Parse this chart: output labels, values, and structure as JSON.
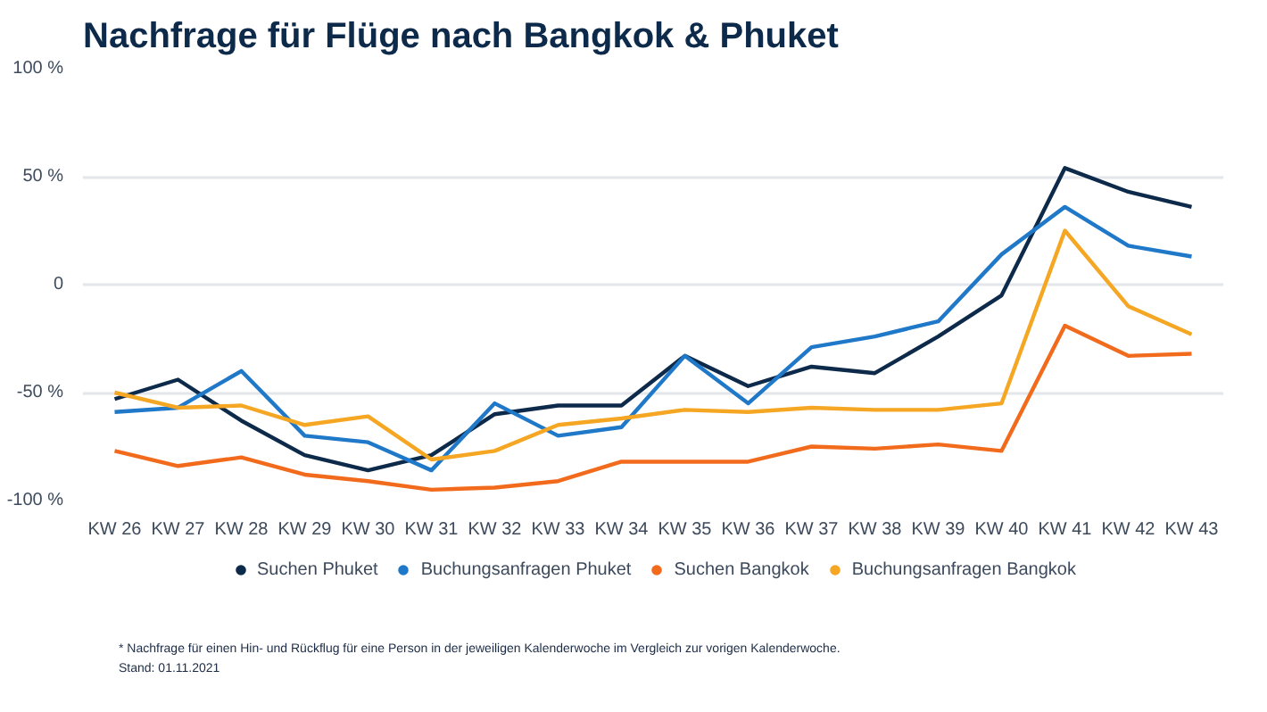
{
  "chart_data": {
    "type": "line",
    "title": "Nachfrage für Flüge nach Bangkok & Phuket",
    "categories": [
      "KW 26",
      "KW 27",
      "KW 28",
      "KW 29",
      "KW 30",
      "KW 31",
      "KW 32",
      "KW 33",
      "KW 34",
      "KW 35",
      "KW 36",
      "KW 37",
      "KW 38",
      "KW 39",
      "KW 40",
      "KW 41",
      "KW 42",
      "KW 43"
    ],
    "series": [
      {
        "name": "Suchen Phuket",
        "color": "#0d2a4a",
        "values": [
          -53,
          -44,
          -63,
          -79,
          -86,
          -79,
          -60,
          -56,
          -56,
          -33,
          -47,
          -38,
          -41,
          -24,
          -5,
          54,
          43,
          36
        ]
      },
      {
        "name": "Buchungsanfragen Phuket",
        "color": "#1f78c8",
        "values": [
          -59,
          -57,
          -40,
          -70,
          -73,
          -86,
          -55,
          -70,
          -66,
          -33,
          -55,
          -29,
          -24,
          -17,
          14,
          36,
          18,
          13
        ]
      },
      {
        "name": "Suchen Bangkok",
        "color": "#f26b1d",
        "values": [
          -77,
          -84,
          -80,
          -88,
          -91,
          -95,
          -94,
          -91,
          -82,
          -82,
          -82,
          -75,
          -76,
          -74,
          -77,
          -19,
          -33,
          -32
        ]
      },
      {
        "name": "Buchungsanfragen Bangkok",
        "color": "#f5a623",
        "values": [
          -50,
          -57,
          -56,
          -65,
          -61,
          -81,
          -77,
          -65,
          -62,
          -58,
          -59,
          -57,
          -58,
          -58,
          -55,
          25,
          -10,
          -23
        ]
      }
    ],
    "ylim": [
      -100,
      100
    ],
    "yticks": [
      {
        "value": -100,
        "label": "-100 %"
      },
      {
        "value": -50,
        "label": "-50 %"
      },
      0,
      {
        "value": 50,
        "label": "50 %"
      },
      {
        "value": 100,
        "label": "100 %"
      }
    ],
    "grid": "y",
    "legend": "bottom",
    "marker": "none",
    "line_style": "solid",
    "annotations": [
      "* Nachfrage für einen Hin- und Rückflug für eine Person in der jeweiligen Kalenderwoche im Vergleich zur vorigen Kalenderwoche.",
      "Stand: 01.11.2021"
    ]
  }
}
